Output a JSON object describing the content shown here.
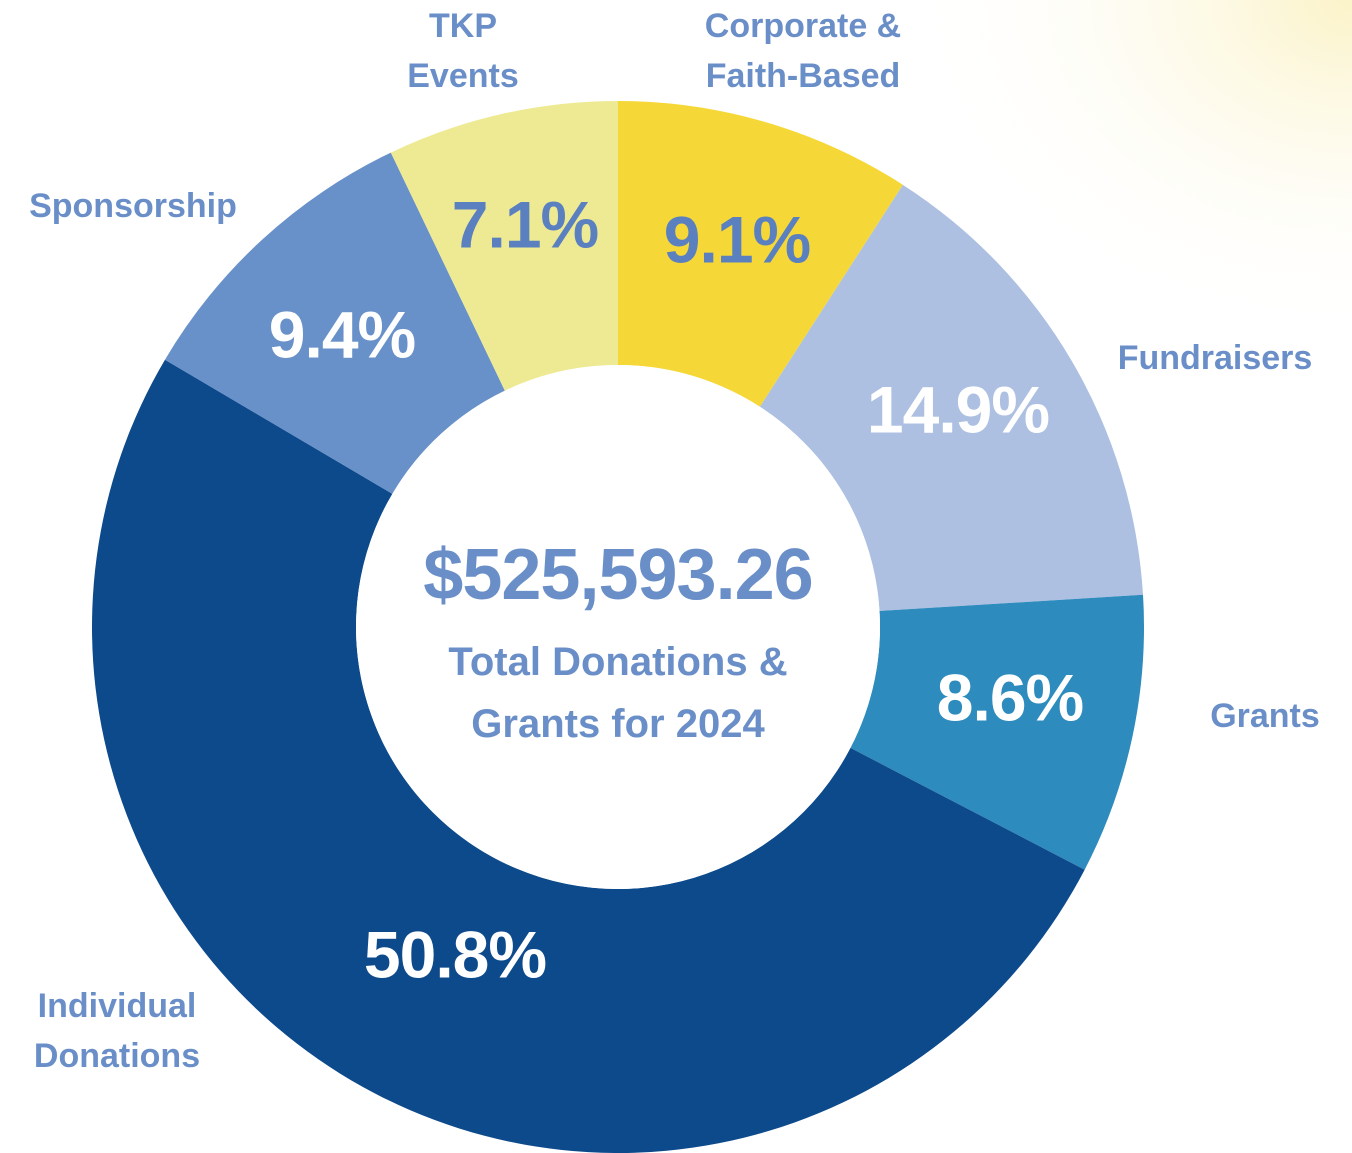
{
  "chart_data": {
    "type": "donut",
    "categories": [
      "Corporate &\nFaith-Based",
      "Fundraisers",
      "Grants",
      "Individual\nDonations",
      "Sponsorship",
      "TKP\nEvents"
    ],
    "values": [
      9.1,
      14.9,
      8.6,
      50.8,
      9.4,
      7.1
    ],
    "value_labels": [
      "9.1%",
      "14.9%",
      "8.6%",
      "50.8%",
      "9.4%",
      "7.1%"
    ],
    "colors": [
      "#f5d838",
      "#adc0e2",
      "#2e8bbd",
      "#0d4a8c",
      "#6890c9",
      "#eeea94"
    ],
    "center_amount": "$525,593.26",
    "center_caption": "Total Donations &\nGrants for 2024"
  }
}
